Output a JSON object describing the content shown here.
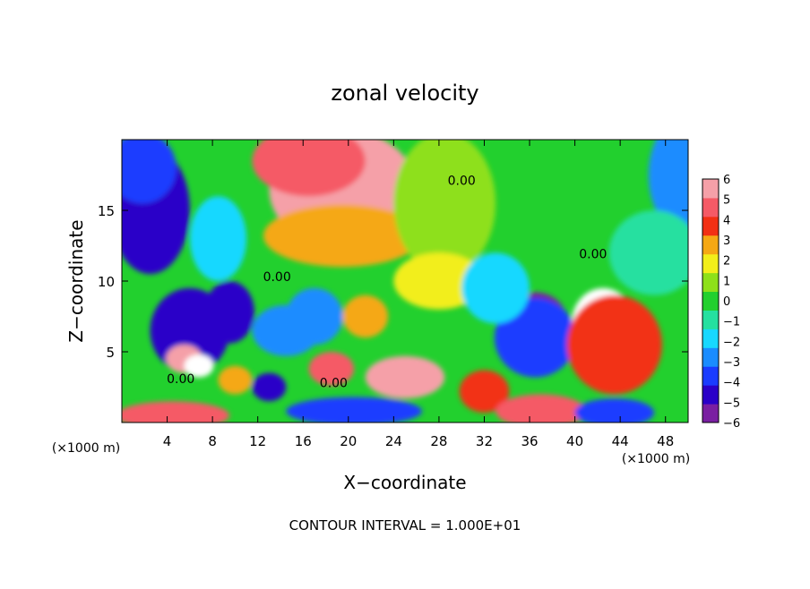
{
  "chart_data": {
    "type": "heatmap",
    "title": "zonal velocity",
    "xlabel": "X−coordinate",
    "ylabel": "Z−coordinate",
    "x_unit_label": "(×1000 m)",
    "x_unit_label_right": "(×1000 m)",
    "footer": "CONTOUR INTERVAL = 1.000E+01",
    "xlim": [
      0,
      50
    ],
    "ylim": [
      0,
      20
    ],
    "x_ticks": [
      4,
      8,
      12,
      16,
      20,
      24,
      28,
      32,
      36,
      40,
      44,
      48
    ],
    "y_ticks": [
      5,
      10,
      15
    ],
    "colorbar": {
      "min": -6,
      "max": 6,
      "ticks": [
        6,
        5,
        4,
        3,
        2,
        1,
        0,
        -1,
        -2,
        -3,
        -4,
        -5,
        -6
      ],
      "colors": [
        "#7a1fa2",
        "#2a00c8",
        "#1a3cff",
        "#1a8cff",
        "#18d8ff",
        "#25e0a0",
        "#22d02e",
        "#8ee01a",
        "#f2ee1a",
        "#f5a814",
        "#f23014",
        "#f55a66",
        "#f5a0a8"
      ]
    },
    "contour_labels": [
      {
        "text": "0.00",
        "x": 13.7,
        "z": 10.0
      },
      {
        "text": "0.00",
        "x": 5.2,
        "z": 2.8
      },
      {
        "text": "0.00",
        "x": 18.7,
        "z": 2.5
      },
      {
        "text": "0.00",
        "x": 30.0,
        "z": 16.8
      },
      {
        "text": "0.00",
        "x": 41.6,
        "z": 11.6
      }
    ],
    "blobs": [
      {
        "x": 19.5,
        "z": 16.5,
        "rx": 6.5,
        "rz": 4.2,
        "v": 5.5
      },
      {
        "x": 16.5,
        "z": 18.5,
        "rx": 5.0,
        "rz": 2.5,
        "v": 4.5
      },
      {
        "x": 19.5,
        "z": 13.2,
        "rx": 7.0,
        "rz": 2.2,
        "v": 3.0
      },
      {
        "x": 28.5,
        "z": 15.5,
        "rx": 4.5,
        "rz": 5.0,
        "v": 0.8
      },
      {
        "x": 2.5,
        "z": 15.0,
        "rx": 3.5,
        "rz": 4.5,
        "v": -5.0
      },
      {
        "x": 1.8,
        "z": 18.0,
        "rx": 3.0,
        "rz": 2.5,
        "v": -3.5
      },
      {
        "x": 8.5,
        "z": 13.0,
        "rx": 2.5,
        "rz": 3.0,
        "v": -2.0
      },
      {
        "x": 6.0,
        "z": 6.5,
        "rx": 3.5,
        "rz": 3.0,
        "v": -4.5
      },
      {
        "x": 9.5,
        "z": 7.8,
        "rx": 2.2,
        "rz": 2.2,
        "v": -5.0
      },
      {
        "x": 5.5,
        "z": 4.5,
        "rx": 1.6,
        "rz": 1.0,
        "v": 5.5
      },
      {
        "x": 6.8,
        "z": 4.0,
        "rx": 1.3,
        "rz": 0.8,
        "v": 6.0
      },
      {
        "x": 14.5,
        "z": 6.5,
        "rx": 3.0,
        "rz": 1.8,
        "v": -3.0
      },
      {
        "x": 17.0,
        "z": 7.5,
        "rx": 2.5,
        "rz": 2.0,
        "v": -2.5
      },
      {
        "x": 18.5,
        "z": 3.8,
        "rx": 2.0,
        "rz": 1.2,
        "v": 4.5
      },
      {
        "x": 13.0,
        "z": 2.5,
        "rx": 1.5,
        "rz": 1.0,
        "v": -4.5
      },
      {
        "x": 21.5,
        "z": 7.5,
        "rx": 2.0,
        "rz": 1.5,
        "v": 3.0
      },
      {
        "x": 25.0,
        "z": 3.2,
        "rx": 3.5,
        "rz": 1.5,
        "v": 5.5
      },
      {
        "x": 20.5,
        "z": 0.8,
        "rx": 6.0,
        "rz": 1.0,
        "v": -3.5
      },
      {
        "x": 4.5,
        "z": 0.5,
        "rx": 5.0,
        "rz": 1.0,
        "v": 5.0
      },
      {
        "x": 36.5,
        "z": 7.2,
        "rx": 2.8,
        "rz": 2.0,
        "v": -6.0
      },
      {
        "x": 36.5,
        "z": 6.0,
        "rx": 3.6,
        "rz": 2.8,
        "v": -4.0
      },
      {
        "x": 42.5,
        "z": 7.0,
        "rx": 2.8,
        "rz": 2.5,
        "v": 6.0
      },
      {
        "x": 43.5,
        "z": 5.5,
        "rx": 4.2,
        "rz": 3.5,
        "v": 4.0
      },
      {
        "x": 32.0,
        "z": 2.2,
        "rx": 2.2,
        "rz": 1.5,
        "v": 3.5
      },
      {
        "x": 37.0,
        "z": 0.8,
        "rx": 4.0,
        "rz": 1.2,
        "v": 4.5
      },
      {
        "x": 43.5,
        "z": 0.7,
        "rx": 3.5,
        "rz": 1.0,
        "v": -3.5
      },
      {
        "x": 49.5,
        "z": 17.5,
        "rx": 3.0,
        "rz": 4.0,
        "v": -2.5
      },
      {
        "x": 47.0,
        "z": 12.0,
        "rx": 4.0,
        "rz": 3.0,
        "v": -0.5
      },
      {
        "x": 28.0,
        "z": 10.0,
        "rx": 4.0,
        "rz": 2.0,
        "v": 1.5
      },
      {
        "x": 33.0,
        "z": 9.5,
        "rx": 3.0,
        "rz": 2.5,
        "v": -1.5
      },
      {
        "x": 10.0,
        "z": 3.0,
        "rx": 1.5,
        "rz": 1.0,
        "v": 3.0
      }
    ],
    "background_value": -0.3,
    "grid": false,
    "legend": "colorbar-right"
  }
}
